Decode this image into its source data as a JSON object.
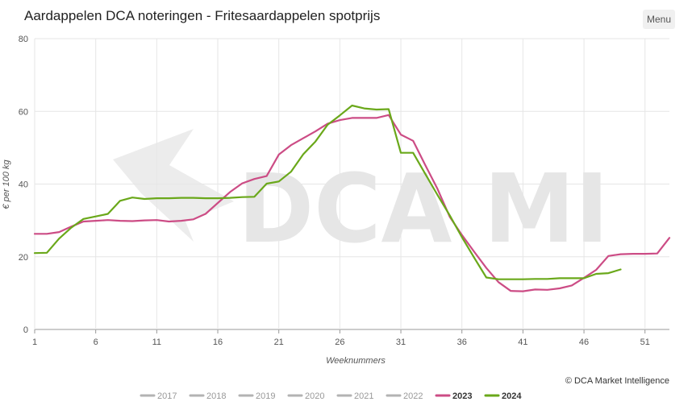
{
  "header": {
    "title": "Aardappelen DCA noteringen - Fritesaardappelen spotprijs",
    "menu_label": "Menu"
  },
  "watermark": {
    "text": "DCA MI"
  },
  "credit": "© DCA Market Intelligence",
  "colors": {
    "2023": "#cc4c85",
    "2024": "#6aa81a",
    "inactive": "#b3b3b3",
    "grid": "#e6e6e6"
  },
  "chart_data": {
    "type": "line",
    "title": "Aardappelen DCA noteringen - Fritesaardappelen spotprijs",
    "xlabel": "Weeknummers",
    "ylabel": "€ per 100 kg",
    "xlim": [
      1,
      53
    ],
    "ylim": [
      0,
      80
    ],
    "x_ticks": [
      1,
      6,
      11,
      16,
      21,
      26,
      31,
      36,
      41,
      46,
      51
    ],
    "y_ticks": [
      0,
      20,
      40,
      60,
      80
    ],
    "grid": true,
    "legend_position": "bottom",
    "legend": [
      "2017",
      "2018",
      "2019",
      "2020",
      "2021",
      "2022",
      "2023",
      "2024"
    ],
    "inactive_series": [
      "2017",
      "2018",
      "2019",
      "2020",
      "2021",
      "2022"
    ],
    "series": [
      {
        "name": "2023",
        "x": [
          1,
          2,
          3,
          4,
          5,
          6,
          7,
          8,
          9,
          10,
          11,
          12,
          13,
          14,
          15,
          16,
          17,
          18,
          19,
          20,
          21,
          22,
          23,
          24,
          25,
          26,
          27,
          28,
          29,
          30,
          31,
          32,
          33,
          34,
          35,
          36,
          37,
          38,
          39,
          40,
          41,
          42,
          43,
          44,
          45,
          46,
          47,
          48,
          49,
          50,
          51,
          52,
          53
        ],
        "values": [
          26.3,
          26.3,
          26.8,
          28.3,
          29.7,
          29.9,
          30.1,
          29.9,
          29.8,
          30.0,
          30.1,
          29.7,
          29.9,
          30.3,
          31.8,
          34.8,
          37.8,
          40.2,
          41.4,
          42.2,
          48.1,
          50.7,
          52.6,
          54.5,
          56.6,
          57.6,
          58.2,
          58.2,
          58.2,
          59.0,
          53.6,
          51.9,
          45.2,
          38.7,
          31.0,
          26.0,
          21.4,
          16.9,
          13.0,
          10.6,
          10.5,
          11.0,
          10.9,
          11.3,
          12.1,
          14.2,
          16.4,
          20.2,
          20.7,
          20.8,
          20.8,
          20.9,
          25.2
        ]
      },
      {
        "name": "2024",
        "x": [
          1,
          2,
          3,
          4,
          5,
          6,
          7,
          8,
          9,
          10,
          11,
          12,
          13,
          14,
          15,
          16,
          17,
          18,
          19,
          20,
          21,
          22,
          23,
          24,
          25,
          26,
          27,
          28,
          29,
          30,
          31,
          32,
          33,
          34,
          35,
          36,
          37,
          38,
          39,
          40,
          41,
          42,
          43,
          44,
          45,
          46,
          47,
          48,
          49
        ],
        "values": [
          21.0,
          21.1,
          25.0,
          28.0,
          30.4,
          31.1,
          31.8,
          35.4,
          36.3,
          35.9,
          36.1,
          36.1,
          36.2,
          36.2,
          36.1,
          36.1,
          36.2,
          36.4,
          36.5,
          40.1,
          40.7,
          43.4,
          48.2,
          51.7,
          56.3,
          58.9,
          61.6,
          60.8,
          60.5,
          60.6,
          48.6,
          48.6,
          42.8,
          37.0,
          31.4,
          25.4,
          19.8,
          14.3,
          13.8,
          13.8,
          13.8,
          13.9,
          13.9,
          14.1,
          14.1,
          14.1,
          15.3,
          15.5,
          16.5
        ]
      }
    ]
  }
}
